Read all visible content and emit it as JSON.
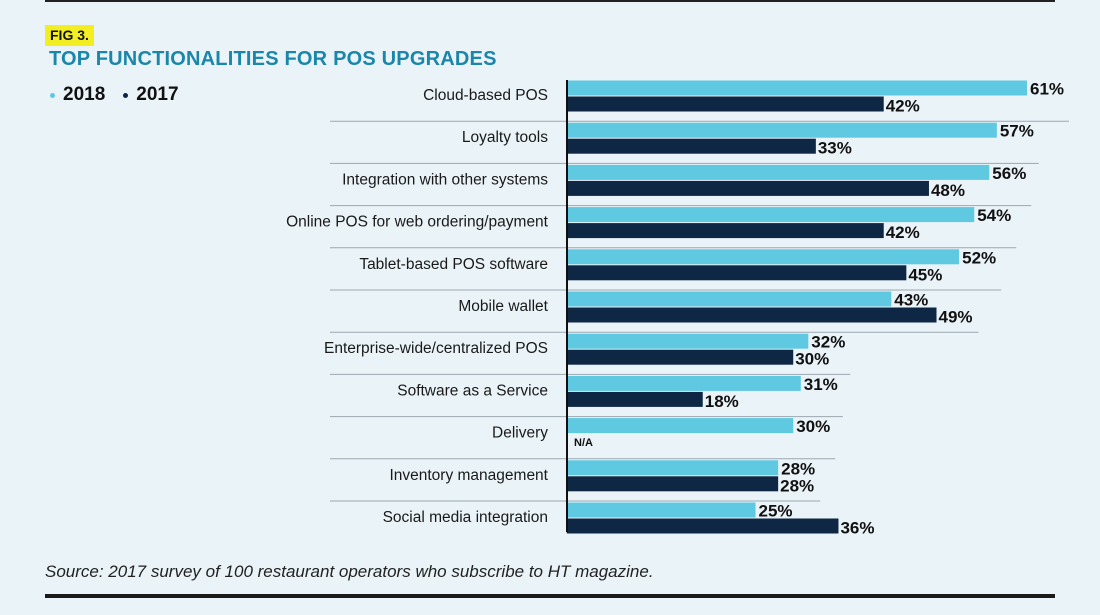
{
  "figure": {
    "badge": "FIG 3."
  },
  "footer": {
    "source": "Source: 2017 survey of 100 restaurant operators who subscribe to HT magazine."
  },
  "colors": {
    "y2018": "#5ec9e0",
    "y2017": "#0d2744",
    "divider": "#9ba7b0",
    "axis": "#111111"
  },
  "chart_data": {
    "type": "bar",
    "orientation": "horizontal",
    "title": "TOP FUNCTIONALITIES FOR POS UPGRADES",
    "legend_position": "top-left",
    "xlim": [
      0,
      61
    ],
    "categories": [
      "Cloud-based POS",
      "Loyalty tools",
      "Integration with other systems",
      "Online POS for web ordering/payment",
      "Tablet-based POS software",
      "Mobile wallet",
      "Enterprise-wide/centralized POS",
      "Software as a Service",
      "Delivery",
      "Inventory management",
      "Social media integration"
    ],
    "series": [
      {
        "name": "2018",
        "values": [
          61,
          57,
          56,
          54,
          52,
          43,
          32,
          31,
          30,
          28,
          25
        ],
        "labels": [
          "61%",
          "57%",
          "56%",
          "54%",
          "52%",
          "43%",
          "32%",
          "31%",
          "30%",
          "28%",
          "25%"
        ]
      },
      {
        "name": "2017",
        "values": [
          42,
          33,
          48,
          42,
          45,
          49,
          30,
          18,
          null,
          28,
          36
        ],
        "labels": [
          "42%",
          "33%",
          "48%",
          "42%",
          "45%",
          "49%",
          "30%",
          "18%",
          "N/A",
          "28%",
          "36%"
        ]
      }
    ]
  }
}
